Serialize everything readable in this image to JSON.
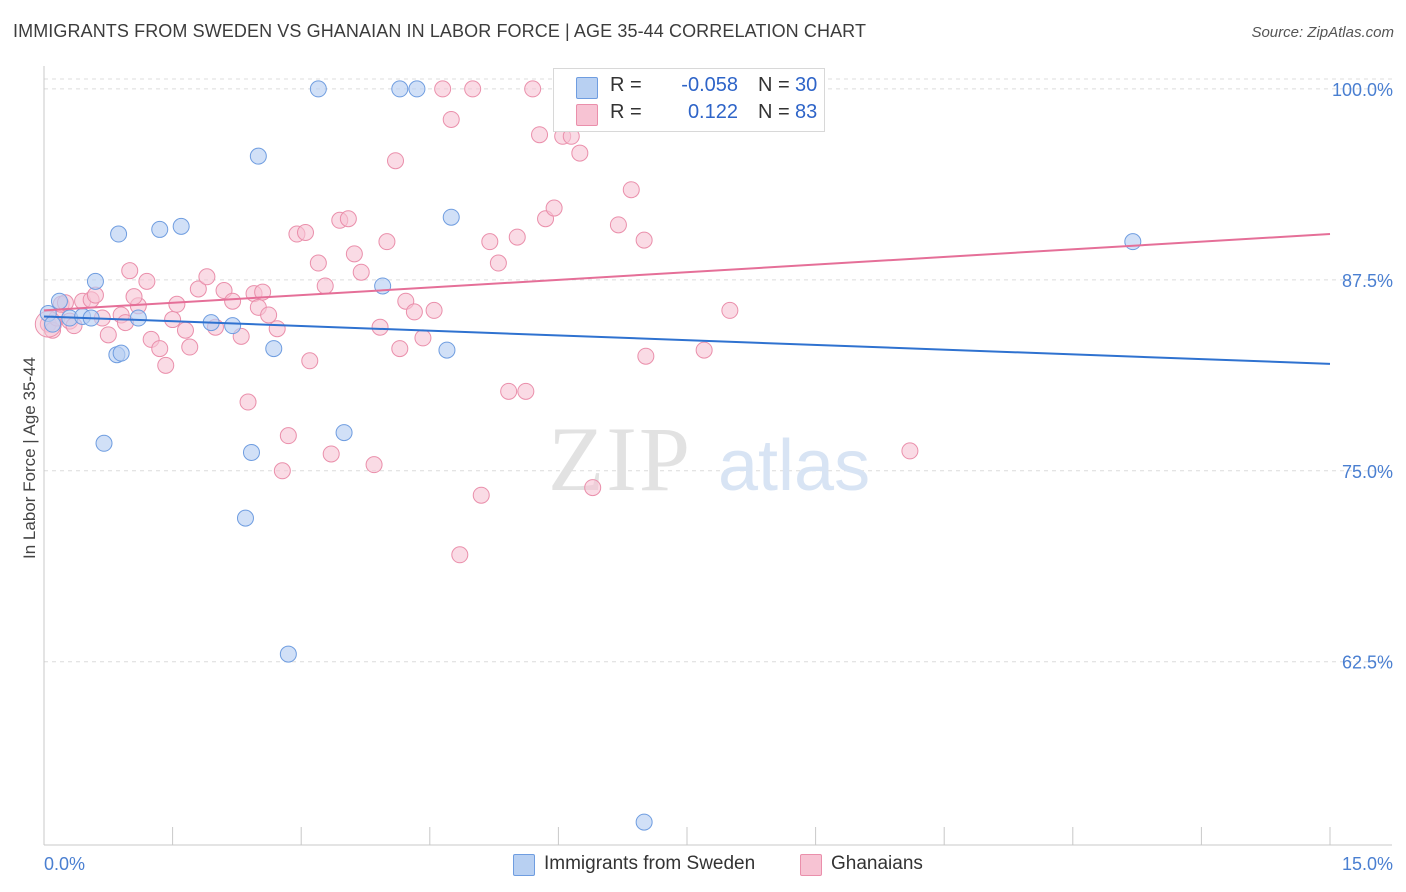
{
  "title": "IMMIGRANTS FROM SWEDEN VS GHANAIAN IN LABOR FORCE | AGE 35-44 CORRELATION CHART",
  "source": "Source: ZipAtlas.com",
  "watermark": {
    "zip": "ZIP",
    "atlas": "atlas"
  },
  "legend": {
    "rows": [
      {
        "r_label": "R =",
        "r_value": "-0.058",
        "n_label": "N =",
        "n_value": "30"
      },
      {
        "r_label": "R =",
        "r_value": "0.122",
        "n_label": "N =",
        "n_value": "83"
      }
    ]
  },
  "colors": {
    "sweden_fill": "#b8d0f2",
    "sweden_stroke": "#6f9de0",
    "sweden_line": "#2f72d0",
    "ghana_fill": "#f7c3d3",
    "ghana_stroke": "#ea8fab",
    "ghana_line": "#e56f98",
    "grid": "#dcdcdc",
    "tick_label": "#4a7fd1"
  },
  "chart_data": {
    "type": "scatter",
    "title": "IMMIGRANTS FROM SWEDEN VS GHANAIAN IN LABOR FORCE | AGE 35-44 CORRELATION CHART",
    "xlabel": "",
    "ylabel": "In Labor Force | Age 35-44",
    "xlim": [
      0,
      15
    ],
    "ylim": [
      50.5,
      101.5
    ],
    "x_tick_labels": [
      {
        "value": 0,
        "label": "0.0%"
      },
      {
        "value": 15,
        "label": "15.0%"
      }
    ],
    "y_tick_labels": [
      {
        "value": 100,
        "label": "100.0%"
      },
      {
        "value": 87.5,
        "label": "87.5%"
      },
      {
        "value": 75,
        "label": "75.0%"
      },
      {
        "value": 62.5,
        "label": "62.5%"
      }
    ],
    "series": [
      {
        "name": "Immigrants from Sweden",
        "R": -0.058,
        "N": 30,
        "trend": {
          "x": [
            0,
            15
          ],
          "y": [
            85.1,
            82.0
          ]
        },
        "points": [
          [
            0.05,
            85.3
          ],
          [
            0.1,
            84.6
          ],
          [
            0.18,
            86.1
          ],
          [
            0.3,
            85.0
          ],
          [
            0.45,
            85.1
          ],
          [
            0.55,
            85.0
          ],
          [
            0.6,
            87.4
          ],
          [
            0.85,
            82.6
          ],
          [
            0.87,
            90.5
          ],
          [
            0.9,
            82.7
          ],
          [
            1.1,
            85.0
          ],
          [
            1.35,
            90.8
          ],
          [
            1.6,
            91.0
          ],
          [
            1.95,
            84.7
          ],
          [
            2.2,
            84.5
          ],
          [
            2.35,
            71.9
          ],
          [
            2.42,
            76.2
          ],
          [
            2.5,
            95.6
          ],
          [
            2.68,
            83.0
          ],
          [
            2.85,
            63.0
          ],
          [
            3.2,
            100.0
          ],
          [
            3.5,
            77.5
          ],
          [
            3.95,
            87.1
          ],
          [
            4.15,
            100.0
          ],
          [
            4.35,
            100.0
          ],
          [
            4.7,
            82.9
          ],
          [
            4.75,
            91.6
          ],
          [
            7.0,
            52.0
          ],
          [
            12.7,
            90.0
          ],
          [
            0.7,
            76.8
          ]
        ]
      },
      {
        "name": "Ghanaians",
        "R": 0.122,
        "N": 83,
        "trend": {
          "x": [
            0,
            15
          ],
          "y": [
            85.5,
            90.5
          ]
        },
        "points": [
          [
            0.05,
            84.6
          ],
          [
            0.1,
            84.2
          ],
          [
            0.15,
            85.0
          ],
          [
            0.2,
            85.9
          ],
          [
            0.3,
            84.8
          ],
          [
            0.35,
            84.5
          ],
          [
            0.45,
            86.1
          ],
          [
            0.55,
            86.2
          ],
          [
            0.6,
            86.5
          ],
          [
            0.68,
            85.0
          ],
          [
            0.75,
            83.9
          ],
          [
            0.9,
            85.2
          ],
          [
            0.95,
            84.7
          ],
          [
            1.0,
            88.1
          ],
          [
            1.1,
            85.8
          ],
          [
            1.2,
            87.4
          ],
          [
            1.25,
            83.6
          ],
          [
            1.35,
            83.0
          ],
          [
            1.42,
            81.9
          ],
          [
            1.5,
            84.9
          ],
          [
            1.55,
            85.9
          ],
          [
            1.65,
            84.2
          ],
          [
            1.7,
            83.1
          ],
          [
            1.8,
            86.9
          ],
          [
            1.9,
            87.7
          ],
          [
            2.0,
            84.4
          ],
          [
            2.1,
            86.8
          ],
          [
            2.2,
            86.1
          ],
          [
            2.3,
            83.8
          ],
          [
            2.38,
            79.5
          ],
          [
            2.45,
            86.6
          ],
          [
            2.5,
            85.7
          ],
          [
            2.55,
            86.7
          ],
          [
            2.62,
            85.2
          ],
          [
            2.72,
            84.3
          ],
          [
            2.78,
            75.0
          ],
          [
            2.85,
            77.3
          ],
          [
            2.95,
            90.5
          ],
          [
            3.05,
            90.6
          ],
          [
            3.1,
            82.2
          ],
          [
            3.2,
            88.6
          ],
          [
            3.28,
            87.1
          ],
          [
            3.35,
            76.1
          ],
          [
            3.45,
            91.4
          ],
          [
            3.55,
            91.5
          ],
          [
            3.62,
            89.2
          ],
          [
            3.7,
            88.0
          ],
          [
            3.85,
            75.4
          ],
          [
            3.92,
            84.4
          ],
          [
            4.0,
            90.0
          ],
          [
            4.1,
            95.3
          ],
          [
            4.15,
            83.0
          ],
          [
            4.22,
            86.1
          ],
          [
            4.32,
            85.4
          ],
          [
            4.42,
            83.7
          ],
          [
            4.55,
            85.5
          ],
          [
            4.65,
            100.0
          ],
          [
            4.75,
            98.0
          ],
          [
            4.85,
            69.5
          ],
          [
            5.0,
            100.0
          ],
          [
            5.1,
            73.4
          ],
          [
            5.2,
            90.0
          ],
          [
            5.3,
            88.6
          ],
          [
            5.42,
            80.2
          ],
          [
            5.52,
            90.3
          ],
          [
            5.62,
            80.2
          ],
          [
            5.7,
            100.0
          ],
          [
            5.78,
            97.0
          ],
          [
            5.85,
            91.5
          ],
          [
            5.95,
            92.2
          ],
          [
            6.05,
            96.9
          ],
          [
            6.15,
            96.9
          ],
          [
            6.25,
            95.8
          ],
          [
            6.4,
            73.9
          ],
          [
            6.7,
            91.1
          ],
          [
            6.85,
            93.4
          ],
          [
            7.0,
            90.1
          ],
          [
            7.02,
            82.5
          ],
          [
            7.7,
            82.9
          ],
          [
            8.0,
            85.5
          ],
          [
            10.1,
            76.3
          ],
          [
            0.25,
            86.0
          ],
          [
            1.05,
            86.4
          ]
        ]
      }
    ]
  },
  "bottom_legend": [
    {
      "label": "Immigrants from Sweden"
    },
    {
      "label": "Ghanaians"
    }
  ]
}
